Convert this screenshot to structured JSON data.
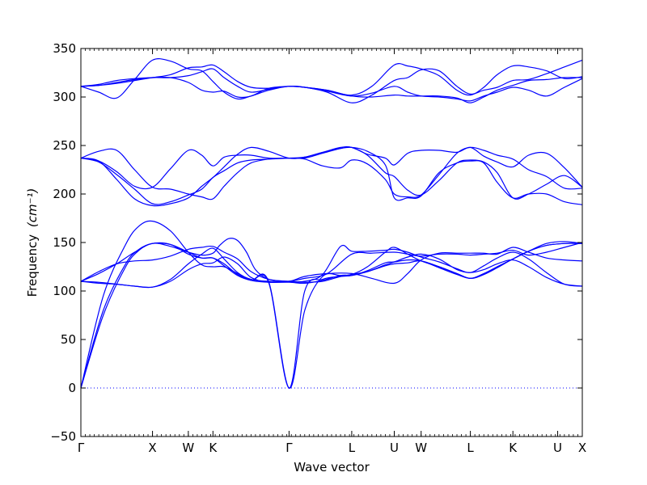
{
  "chart_data": {
    "type": "line",
    "title": "",
    "xlabel": "Wave vector",
    "ylabel": "Frequency",
    "ylabel_unit": "(cm⁻¹)",
    "ylim": [
      -50,
      350
    ],
    "yticks": [
      -50,
      0,
      50,
      100,
      150,
      200,
      250,
      300,
      350
    ],
    "xlim": [
      0,
      11.2
    ],
    "xticks": [
      {
        "x": 0.0,
        "label": "Γ"
      },
      {
        "x": 1.6,
        "label": "X"
      },
      {
        "x": 2.4,
        "label": "W"
      },
      {
        "x": 2.95,
        "label": "K"
      },
      {
        "x": 4.65,
        "label": "Γ"
      },
      {
        "x": 6.05,
        "label": "L"
      },
      {
        "x": 7.0,
        "label": "U"
      },
      {
        "x": 7.6,
        "label": "W"
      },
      {
        "x": 8.7,
        "label": "L"
      },
      {
        "x": 9.65,
        "label": "K"
      },
      {
        "x": 10.65,
        "label": "U"
      },
      {
        "x": 11.2,
        "label": "X"
      }
    ],
    "grid": false,
    "zero_line": true,
    "series_color": "#0000ff",
    "series": [
      {
        "x": [
          0,
          0.5,
          1.0,
          1.3,
          1.6,
          2.0,
          2.4,
          2.7,
          2.95,
          3.2,
          3.5,
          3.8,
          4.2,
          4.65,
          5.0,
          5.4,
          5.8,
          6.05,
          6.4,
          6.8,
          7.0,
          7.3,
          7.6,
          8.0,
          8.4,
          8.7,
          9.0,
          9.3,
          9.65,
          10.0,
          10.4,
          10.8,
          11.2
        ],
        "y": [
          0,
          95,
          148,
          167,
          172,
          162,
          140,
          127,
          125,
          125,
          118,
          111,
          109,
          109,
          108,
          111,
          116,
          117,
          125,
          140,
          145,
          138,
          131,
          125,
          118,
          113,
          118,
          125,
          133,
          141,
          149,
          151,
          149
        ]
      },
      {
        "x": [
          0,
          0.5,
          1.0,
          1.3,
          1.6,
          2.0,
          2.4,
          2.7,
          2.95,
          3.2,
          3.5,
          3.8,
          4.2,
          4.65,
          5.0,
          5.4,
          5.8,
          6.05,
          6.4,
          6.8,
          7.0,
          7.3,
          7.6,
          8.0,
          8.4,
          8.7,
          9.0,
          9.3,
          9.65,
          10.0,
          10.4,
          10.8,
          11.2
        ],
        "y": [
          0,
          80,
          128,
          143,
          149,
          148,
          140,
          134,
          134,
          128,
          117,
          111,
          108,
          0,
          100,
          112,
          115,
          116,
          120,
          126,
          128,
          129,
          131,
          125,
          118,
          113,
          117,
          125,
          133,
          141,
          147,
          149,
          149
        ]
      },
      {
        "x": [
          0,
          0.5,
          1.0,
          1.3,
          1.6,
          2.0,
          2.4,
          2.7,
          2.95,
          3.2,
          3.5,
          3.8,
          4.2,
          4.65,
          5.0,
          5.4,
          5.8,
          6.05,
          6.4,
          6.8,
          7.0,
          7.3,
          7.6,
          8.0,
          8.4,
          8.7,
          9.0,
          9.3,
          9.65,
          10.0,
          10.4,
          10.8,
          11.2
        ],
        "y": [
          0,
          75,
          125,
          142,
          149,
          148,
          138,
          134,
          134,
          126,
          116,
          111,
          109,
          0,
          80,
          115,
          116,
          116,
          121,
          129,
          130,
          132,
          131,
          124,
          117,
          113,
          117,
          124,
          133,
          141,
          147,
          149,
          149
        ]
      },
      {
        "x": [
          0,
          0.4,
          0.8,
          1.2,
          1.6,
          2.0,
          2.4,
          2.7,
          2.95,
          3.2,
          3.5,
          3.8,
          4.2,
          4.65,
          5.0,
          5.5,
          6.05,
          6.5,
          7.0,
          7.3,
          7.6,
          8.0,
          8.4,
          8.7,
          9.0,
          9.3,
          9.65,
          10.0,
          10.4,
          10.8,
          11.2
        ],
        "y": [
          110,
          108,
          107,
          105,
          104,
          112,
          128,
          138,
          144,
          133,
          119,
          112,
          110,
          110,
          115,
          118,
          118,
          113,
          108,
          118,
          132,
          139,
          139,
          139,
          139,
          138,
          145,
          140,
          134,
          132,
          131
        ]
      },
      {
        "x": [
          0,
          0.4,
          0.8,
          1.2,
          1.6,
          2.0,
          2.4,
          2.7,
          2.95,
          3.2,
          3.5,
          3.8,
          4.2,
          4.65,
          5.0,
          5.5,
          6.05,
          6.5,
          7.0,
          7.3,
          7.6,
          8.0,
          8.4,
          8.7,
          9.0,
          9.3,
          9.65,
          10.0,
          10.4,
          10.8,
          11.2
        ],
        "y": [
          110,
          109,
          107,
          105,
          104,
          110,
          122,
          128,
          129,
          135,
          128,
          114,
          109,
          110,
          113,
          118,
          138,
          139,
          140,
          138,
          136,
          138,
          138,
          137,
          138,
          139,
          142,
          137,
          140,
          145,
          150
        ]
      },
      {
        "x": [
          0,
          0.4,
          0.8,
          1.2,
          1.6,
          2.0,
          2.4,
          2.7,
          2.95,
          3.2,
          3.5,
          3.8,
          4.2,
          4.65,
          5.0,
          5.4,
          5.8,
          6.05,
          6.4,
          6.8,
          7.0,
          7.3,
          7.6,
          8.0,
          8.4,
          8.7,
          9.0,
          9.3,
          9.65,
          10.0,
          10.4,
          10.8,
          11.2
        ],
        "y": [
          110,
          120,
          128,
          131,
          132,
          136,
          143,
          145,
          146,
          140,
          133,
          120,
          112,
          110,
          110,
          117,
          146,
          141,
          141,
          142,
          143,
          140,
          135,
          130,
          123,
          119,
          126,
          134,
          140,
          133,
          119,
          107,
          105
        ]
      },
      {
        "x": [
          0,
          0.4,
          0.8,
          1.2,
          1.6,
          2.0,
          2.4,
          2.7,
          2.95,
          3.1,
          3.3,
          3.5,
          3.7,
          3.9,
          4.2,
          4.65,
          5.0,
          5.4,
          5.8,
          6.05,
          6.4,
          6.8,
          7.0,
          7.3,
          7.6,
          8.0,
          8.4,
          8.7,
          9.0,
          9.3,
          9.65,
          10.0,
          10.4,
          10.8,
          11.2
        ],
        "y": [
          110,
          118,
          128,
          140,
          149,
          146,
          140,
          137,
          139,
          147,
          154,
          152,
          140,
          122,
          112,
          110,
          109,
          110,
          115,
          117,
          120,
          127,
          130,
          135,
          138,
          133,
          122,
          119,
          122,
          128,
          132,
          125,
          114,
          107,
          105
        ]
      },
      {
        "x": [
          0,
          0.4,
          0.8,
          1.2,
          1.6,
          2.0,
          2.4,
          2.7,
          2.95,
          3.2,
          3.5,
          3.8,
          4.2,
          4.65,
          5.0,
          5.4,
          5.8,
          6.05,
          6.4,
          6.8,
          7.0,
          7.3,
          7.6,
          8.0,
          8.4,
          8.7,
          9.0,
          9.3,
          9.65,
          10.0,
          10.4,
          10.8,
          11.2
        ],
        "y": [
          237,
          244,
          245,
          225,
          207,
          205,
          200,
          197,
          195,
          208,
          222,
          232,
          236,
          237,
          237,
          242,
          247,
          248,
          241,
          237,
          230,
          242,
          245,
          245,
          243,
          248,
          239,
          233,
          228,
          240,
          242,
          227,
          207
        ]
      },
      {
        "x": [
          0,
          0.4,
          0.8,
          1.2,
          1.6,
          2.0,
          2.4,
          2.7,
          2.95,
          3.2,
          3.5,
          3.8,
          4.2,
          4.65,
          5.0,
          5.4,
          5.8,
          6.05,
          6.4,
          6.8,
          7.0,
          7.3,
          7.6,
          8.0,
          8.4,
          8.7,
          9.0,
          9.3,
          9.65,
          10.0,
          10.4,
          10.8,
          11.2
        ],
        "y": [
          237,
          234,
          223,
          208,
          207,
          226,
          245,
          240,
          229,
          238,
          240,
          240,
          237,
          237,
          236,
          229,
          227,
          235,
          231,
          215,
          200,
          197,
          199,
          220,
          242,
          248,
          245,
          240,
          236,
          225,
          218,
          206,
          206
        ]
      },
      {
        "x": [
          0,
          0.4,
          0.8,
          1.2,
          1.6,
          2.0,
          2.4,
          2.7,
          2.95,
          3.2,
          3.5,
          3.8,
          4.2,
          4.65,
          5.0,
          5.4,
          5.8,
          6.05,
          6.4,
          6.8,
          7.0,
          7.3,
          7.6,
          8.0,
          8.4,
          8.7,
          9.0,
          9.3,
          9.65,
          10.0,
          10.4,
          10.8,
          11.2
        ],
        "y": [
          237,
          234,
          215,
          195,
          188,
          190,
          196,
          208,
          217,
          228,
          241,
          248,
          244,
          237,
          238,
          243,
          248,
          248,
          240,
          222,
          218,
          204,
          199,
          214,
          232,
          235,
          233,
          222,
          196,
          200,
          210,
          219,
          207
        ]
      },
      {
        "x": [
          0,
          0.4,
          0.8,
          1.2,
          1.6,
          2.0,
          2.4,
          2.7,
          2.95,
          3.2,
          3.5,
          3.8,
          4.2,
          4.65,
          5.0,
          5.4,
          5.8,
          6.05,
          6.4,
          6.8,
          7.0,
          7.3,
          7.6,
          8.0,
          8.4,
          8.7,
          9.0,
          9.3,
          9.65,
          10.0,
          10.4,
          10.8,
          11.2
        ],
        "y": [
          237,
          233,
          220,
          205,
          190,
          192,
          199,
          205,
          217,
          224,
          232,
          235,
          236,
          237,
          238,
          243,
          247,
          248,
          244,
          230,
          196,
          196,
          198,
          222,
          232,
          234,
          232,
          212,
          196,
          200,
          200,
          192,
          189
        ]
      },
      {
        "x": [
          0,
          0.4,
          0.8,
          1.2,
          1.6,
          2.0,
          2.4,
          2.7,
          2.95,
          3.2,
          3.5,
          3.8,
          4.2,
          4.65,
          5.0,
          5.5,
          6.05,
          6.5,
          7.0,
          7.3,
          7.6,
          8.0,
          8.4,
          8.7,
          9.0,
          9.3,
          9.65,
          10.0,
          10.4,
          10.8,
          11.2
        ],
        "y": [
          311,
          312,
          315,
          318,
          320,
          320,
          322,
          326,
          329,
          320,
          311,
          305,
          308,
          311,
          310,
          306,
          301,
          304,
          311,
          305,
          301,
          300,
          298,
          296,
          301,
          305,
          310,
          307,
          301,
          310,
          319
        ]
      },
      {
        "x": [
          0,
          0.4,
          0.8,
          1.2,
          1.6,
          2.0,
          2.4,
          2.7,
          2.95,
          3.2,
          3.5,
          3.8,
          4.2,
          4.65,
          5.0,
          5.5,
          6.05,
          6.5,
          7.0,
          7.3,
          7.6,
          8.0,
          8.4,
          8.7,
          9.0,
          9.3,
          9.65,
          10.0,
          10.4,
          10.8,
          11.2
        ],
        "y": [
          311,
          313,
          317,
          319,
          320,
          320,
          315,
          307,
          305,
          306,
          300,
          301,
          309,
          311,
          310,
          307,
          302,
          311,
          333,
          332,
          329,
          322,
          307,
          302,
          310,
          323,
          332,
          331,
          327,
          319,
          321
        ]
      },
      {
        "x": [
          0,
          0.4,
          0.8,
          1.2,
          1.6,
          2.0,
          2.4,
          2.7,
          2.95,
          3.2,
          3.5,
          3.8,
          4.2,
          4.65,
          5.0,
          5.5,
          6.05,
          6.5,
          7.0,
          7.3,
          7.6,
          8.0,
          8.4,
          8.7,
          9.0,
          9.3,
          9.65,
          10.0,
          10.4,
          10.8,
          11.2
        ],
        "y": [
          311,
          305,
          299,
          318,
          338,
          337,
          329,
          327,
          316,
          305,
          298,
          301,
          307,
          311,
          310,
          305,
          294,
          302,
          317,
          320,
          328,
          327,
          311,
          303,
          307,
          310,
          317,
          318,
          324,
          331,
          338
        ]
      },
      {
        "x": [
          0,
          0.4,
          0.8,
          1.2,
          1.6,
          2.0,
          2.4,
          2.7,
          2.95,
          3.2,
          3.5,
          3.8,
          4.2,
          4.65,
          5.0,
          5.5,
          6.05,
          6.5,
          7.0,
          7.3,
          7.6,
          8.0,
          8.4,
          8.7,
          9.0,
          9.3,
          9.65,
          10.0,
          10.4,
          10.8,
          11.2
        ],
        "y": [
          311,
          312,
          314,
          317,
          320,
          323,
          330,
          331,
          333,
          326,
          316,
          310,
          309,
          311,
          310,
          307,
          301,
          300,
          302,
          301,
          301,
          301,
          299,
          294,
          300,
          307,
          312,
          317,
          318,
          320,
          320
        ]
      }
    ]
  }
}
